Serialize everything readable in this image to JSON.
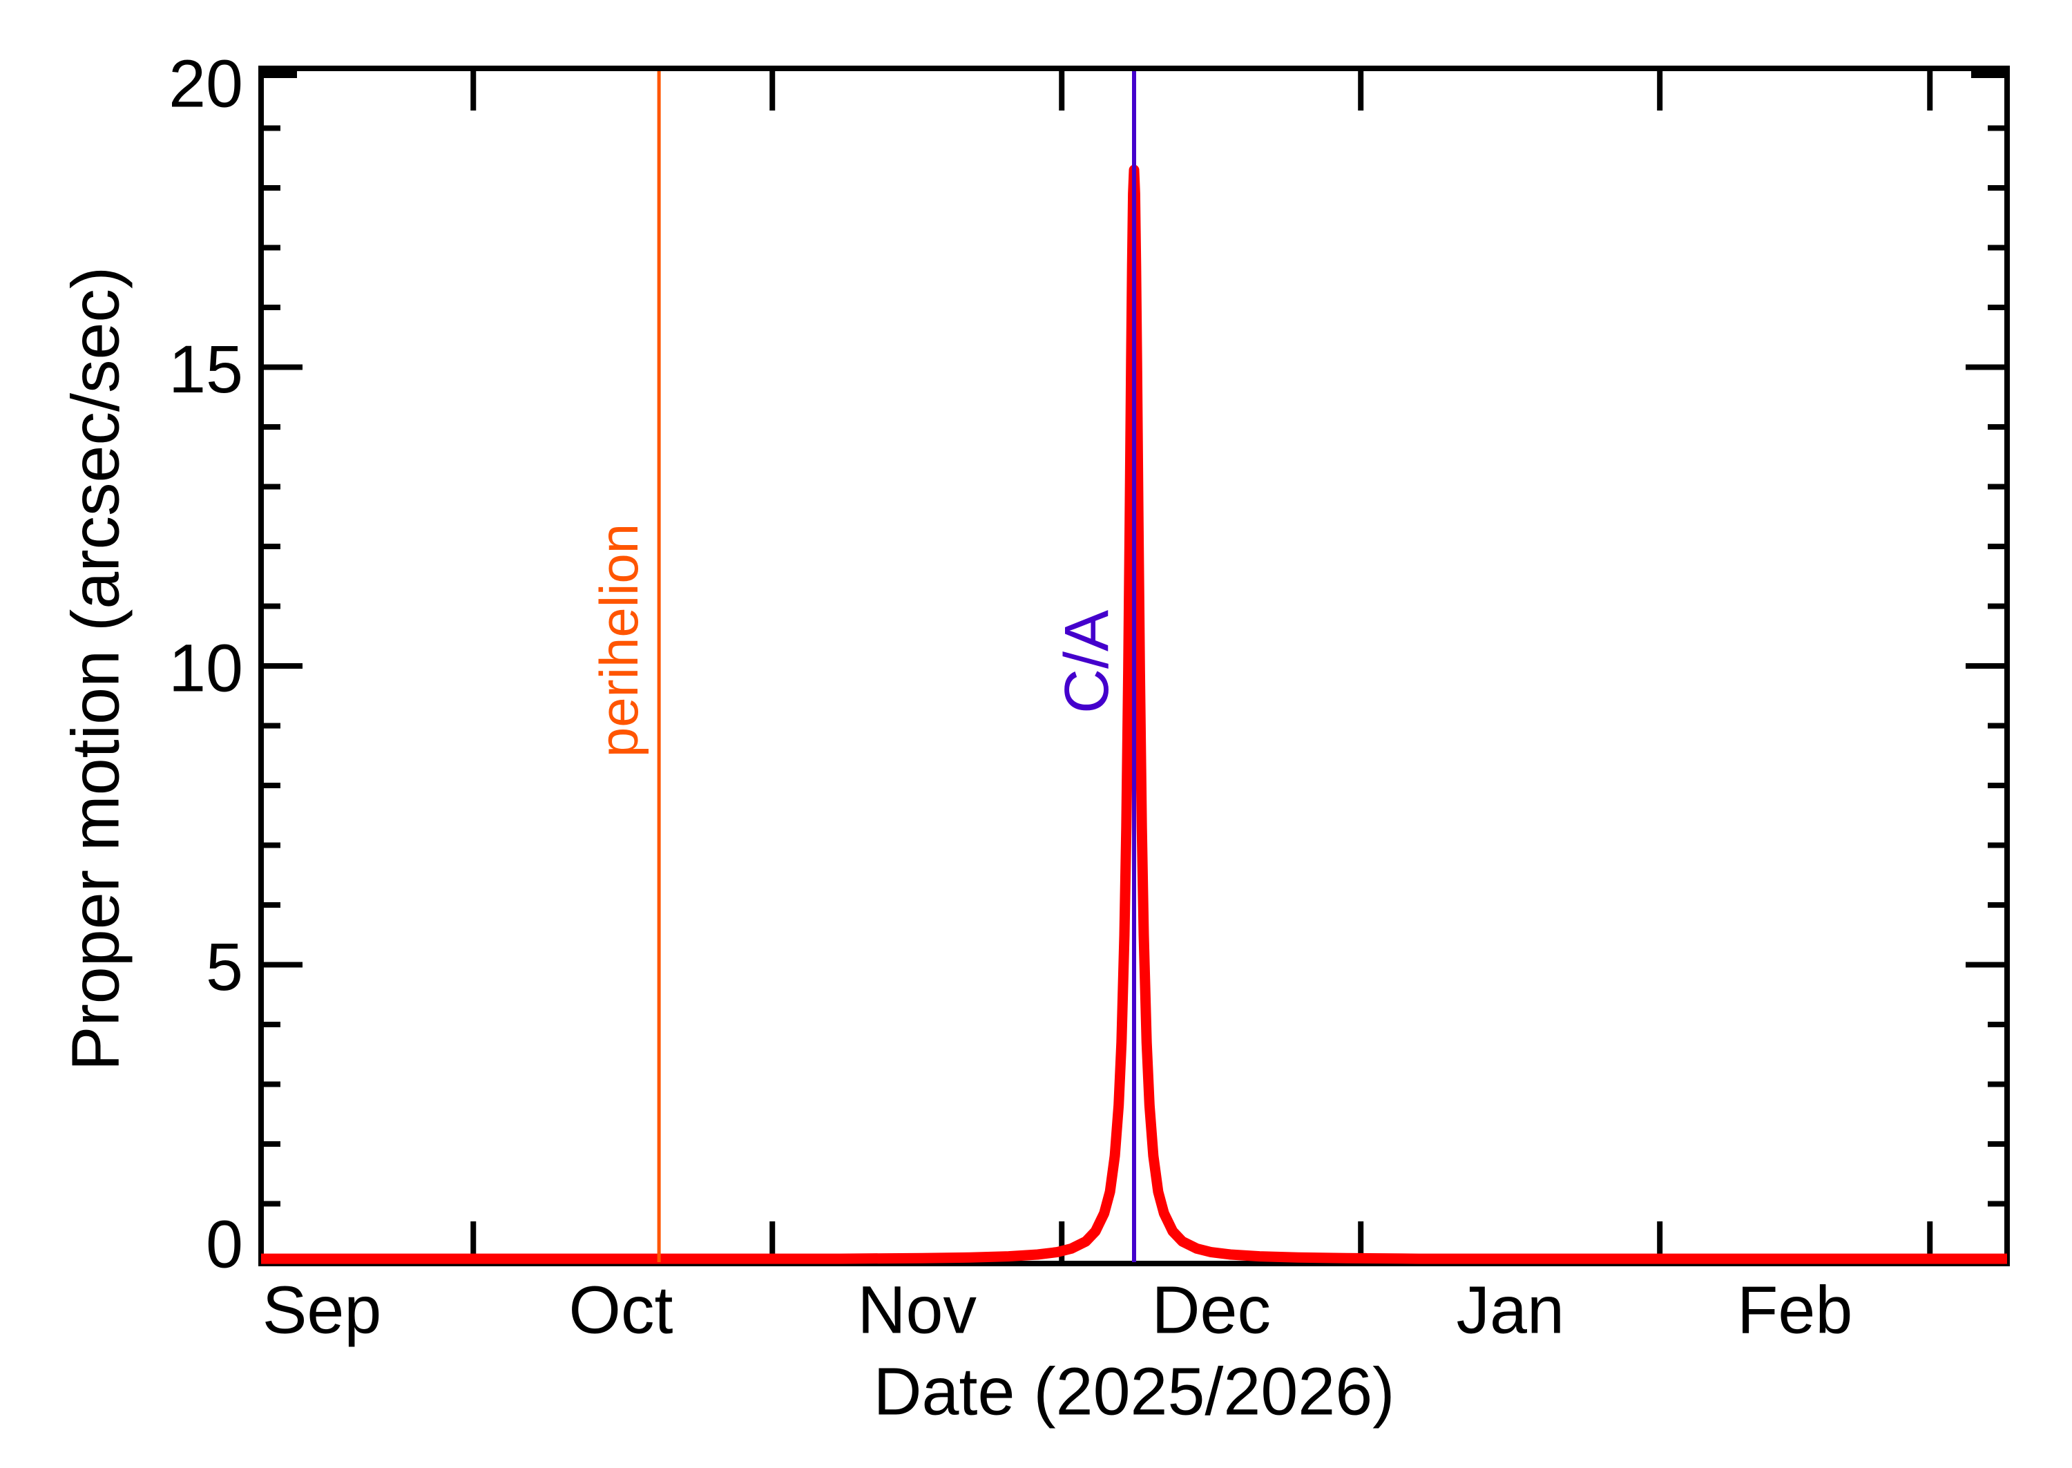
{
  "chart_data": {
    "type": "line",
    "title": "",
    "xlabel": "Date (2025/2026)",
    "ylabel": "Proper motion (arcsec/sec)",
    "x_axis": {
      "start_date": "2025-09-09",
      "end_date": "2026-03-09",
      "span_days": 181,
      "tick_days": [
        22,
        53,
        83,
        114,
        145,
        173
      ],
      "tick_dates": [
        "2025-10-01",
        "2025-11-01",
        "2025-12-01",
        "2026-01-01",
        "2026-02-01",
        "2026-03-01"
      ],
      "labels": [
        {
          "text": "Sep",
          "day": 6.3
        },
        {
          "text": "Oct",
          "day": 37.3
        },
        {
          "text": "Nov",
          "day": 68.0
        },
        {
          "text": "Dec",
          "day": 98.5
        },
        {
          "text": "Jan",
          "day": 129.5
        },
        {
          "text": "Feb",
          "day": 159.0
        }
      ]
    },
    "y_axis": {
      "min": 0,
      "max": 20,
      "major_ticks": [
        0,
        5,
        10,
        15,
        20
      ],
      "major_tick_labels": [
        "0",
        "5",
        "10",
        "15",
        "20"
      ],
      "minor_step": 1
    },
    "grid": "off",
    "legend": "none",
    "series": [
      {
        "name": "proper-motion",
        "color": "#FF0000",
        "points": [
          [
            0,
            0.08
          ],
          [
            10,
            0.08
          ],
          [
            20,
            0.08
          ],
          [
            30,
            0.08
          ],
          [
            41.25,
            0.08
          ],
          [
            50,
            0.08
          ],
          [
            60,
            0.08
          ],
          [
            68.5,
            0.09
          ],
          [
            73.5,
            0.1
          ],
          [
            77.5,
            0.12
          ],
          [
            80.5,
            0.15
          ],
          [
            82.5,
            0.19
          ],
          [
            84,
            0.25
          ],
          [
            85.5,
            0.37
          ],
          [
            86.5,
            0.54
          ],
          [
            87.4,
            0.84
          ],
          [
            88,
            1.2
          ],
          [
            88.5,
            1.8
          ],
          [
            88.9,
            2.65
          ],
          [
            89.2,
            3.7
          ],
          [
            89.5,
            5.5
          ],
          [
            89.7,
            7.3
          ],
          [
            89.9,
            9.9
          ],
          [
            90.05,
            12.4
          ],
          [
            90.2,
            15.1
          ],
          [
            90.3,
            16.7
          ],
          [
            90.4,
            17.9
          ],
          [
            90.5,
            18.3
          ],
          [
            90.6,
            17.9
          ],
          [
            90.7,
            16.7
          ],
          [
            90.8,
            15.1
          ],
          [
            90.95,
            12.4
          ],
          [
            91.1,
            9.9
          ],
          [
            91.3,
            7.3
          ],
          [
            91.5,
            5.5
          ],
          [
            91.8,
            3.7
          ],
          [
            92.1,
            2.65
          ],
          [
            92.5,
            1.8
          ],
          [
            93,
            1.2
          ],
          [
            93.6,
            0.84
          ],
          [
            94.5,
            0.54
          ],
          [
            95.5,
            0.37
          ],
          [
            97,
            0.25
          ],
          [
            98.5,
            0.19
          ],
          [
            100.5,
            0.15
          ],
          [
            103.5,
            0.12
          ],
          [
            107.5,
            0.1
          ],
          [
            112.5,
            0.09
          ],
          [
            120,
            0.08
          ],
          [
            135,
            0.08
          ],
          [
            150,
            0.08
          ],
          [
            165,
            0.08
          ],
          [
            181,
            0.08
          ]
        ]
      }
    ],
    "peak": {
      "day": 90.5,
      "date": "2025-12-08",
      "value": 18.3
    },
    "annotations": [
      {
        "type": "vline",
        "text": "perihelion",
        "day": 41.25,
        "date": "2025-10-20",
        "color": "#FF5500"
      },
      {
        "type": "vline",
        "text": "C/A",
        "day": 90.5,
        "date": "2025-12-08",
        "color": "#4400CC"
      }
    ],
    "frame_color": "#000000",
    "background_color": "#FFFFFF"
  }
}
